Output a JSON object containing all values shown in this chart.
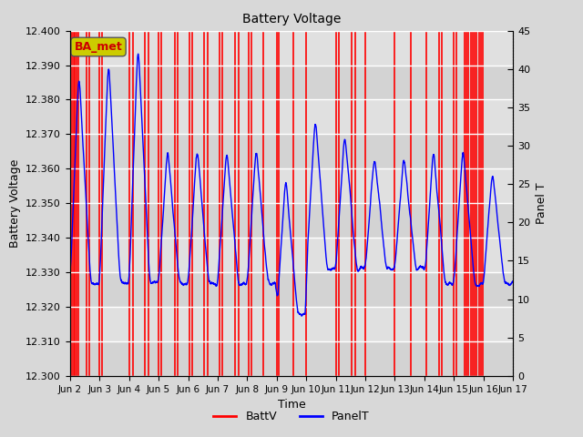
{
  "title": "Battery Voltage",
  "xlabel": "Time",
  "ylabel_left": "Battery Voltage",
  "ylabel_right": "Panel T",
  "ylim_left": [
    12.3,
    12.4
  ],
  "ylim_right": [
    0,
    45
  ],
  "yticks_left": [
    12.3,
    12.31,
    12.32,
    12.33,
    12.34,
    12.35,
    12.36,
    12.37,
    12.38,
    12.39,
    12.4
  ],
  "yticks_right": [
    0,
    5,
    10,
    15,
    20,
    25,
    30,
    35,
    40,
    45
  ],
  "background_color": "#d8d8d8",
  "plot_bg_color": "#e0e0e0",
  "annotation_text": "BA_met",
  "annotation_box_color": "#cccc00",
  "annotation_text_color": "#cc0000",
  "red_line_color": "#ff0000",
  "blue_line_color": "#0000ff",
  "red_vlines": [
    2.02,
    2.07,
    2.12,
    2.17,
    2.22,
    2.27,
    2.55,
    2.65,
    3.0,
    3.08,
    4.02,
    4.12,
    4.55,
    4.65,
    5.0,
    5.08,
    5.55,
    5.65,
    6.05,
    6.15,
    6.55,
    6.65,
    7.05,
    7.15,
    7.6,
    7.7,
    8.05,
    8.15,
    8.55,
    9.0,
    9.08,
    9.55,
    10.0,
    11.0,
    11.1,
    11.55,
    11.65,
    12.0,
    13.0,
    13.55,
    14.05,
    14.5,
    14.6,
    15.0,
    15.08,
    15.35,
    15.42,
    15.49,
    15.56,
    15.63,
    15.7,
    15.77,
    15.84,
    15.91,
    15.98
  ],
  "xmin": 2.0,
  "xmax": 17.0,
  "xtick_positions": [
    2,
    3,
    4,
    5,
    6,
    7,
    8,
    9,
    10,
    11,
    12,
    13,
    14,
    15,
    16,
    17
  ],
  "xtick_labels": [
    "Jun 2",
    "Jun 3",
    "Jun 4",
    "Jun 5",
    "Jun 6",
    "Jun 7",
    "Jun 8",
    "Jun 9",
    "Jun 10",
    "Jun 11",
    "Jun 12",
    "Jun 13",
    "Jun 14",
    "Jun 15",
    "Jun 16",
    "Jun 17"
  ]
}
